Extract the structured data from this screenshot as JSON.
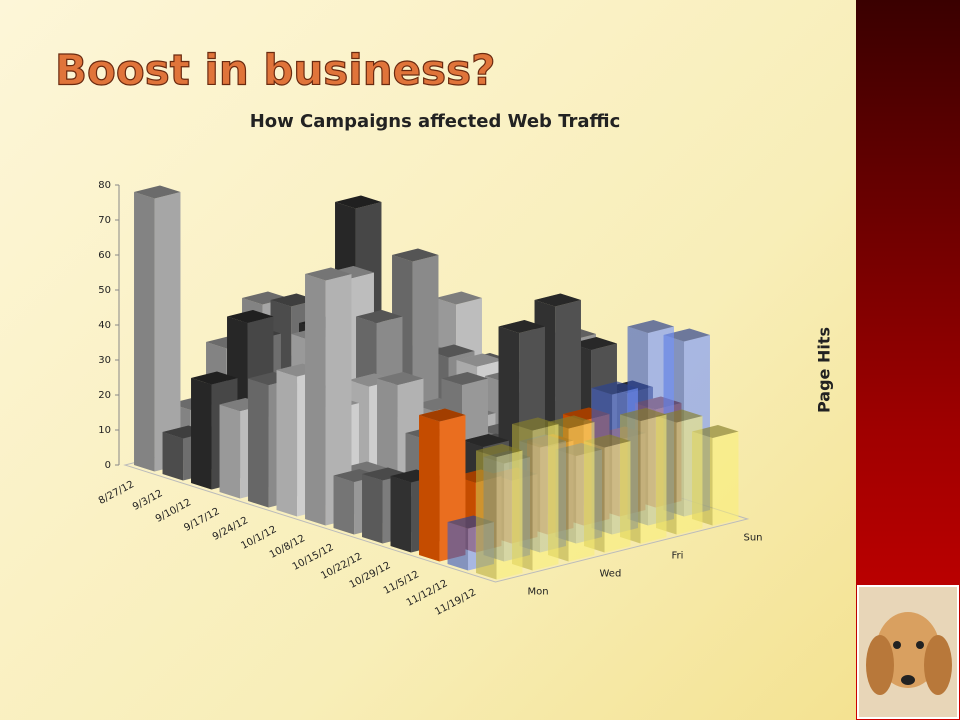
{
  "header": {
    "title": "Boost in business?"
  },
  "chart_data": {
    "type": "bar3d",
    "title": "How Campaigns affected Web Traffic",
    "axis_label": "Page Hits",
    "categories": [
      "8/27/12",
      "9/3/12",
      "9/10/12",
      "9/17/12",
      "9/24/12",
      "10/1/12",
      "10/8/12",
      "10/15/12",
      "10/22/12",
      "10/29/12",
      "11/5/12",
      "11/12/12",
      "11/19/12"
    ],
    "depth_categories": [
      "Mon",
      null,
      "Wed",
      null,
      "Fri",
      null,
      "Sun"
    ],
    "colors": [
      "#9a9a9a",
      "#5a5a5a",
      "#2e2e2e",
      "#b4b4b4",
      "#7a7a7a",
      "#c8c8c8",
      "#a8a8a8",
      "#8a8a8a",
      "#6a6a6a",
      "#3a3a3a",
      "#e85a00",
      "rgba(80,120,255,0.55)",
      "rgba(250,236,80,0.5)"
    ],
    "values": [
      [
        78,
        15,
        30,
        40,
        20,
        10,
        15
      ],
      [
        12,
        10,
        35,
        42,
        25,
        15,
        20
      ],
      [
        30,
        45,
        20,
        38,
        70,
        22,
        18
      ],
      [
        25,
        18,
        40,
        55,
        35,
        28,
        40
      ],
      [
        35,
        30,
        25,
        45,
        60,
        30,
        25
      ],
      [
        40,
        28,
        32,
        20,
        15,
        30,
        22
      ],
      [
        70,
        12,
        35,
        25,
        20,
        28,
        30
      ],
      [
        15,
        10,
        22,
        35,
        18,
        25,
        40
      ],
      [
        18,
        8,
        12,
        20,
        30,
        25,
        20
      ],
      [
        20,
        15,
        25,
        55,
        60,
        45,
        30
      ],
      [
        40,
        20,
        18,
        25,
        30,
        22,
        28
      ],
      [
        12,
        28,
        30,
        25,
        40,
        55,
        50
      ],
      [
        35,
        40,
        38,
        30,
        35,
        32,
        25
      ]
    ],
    "ylim": [
      0,
      80
    ],
    "yticks": [
      0,
      10,
      20,
      30,
      40,
      50,
      60,
      70,
      80
    ]
  }
}
